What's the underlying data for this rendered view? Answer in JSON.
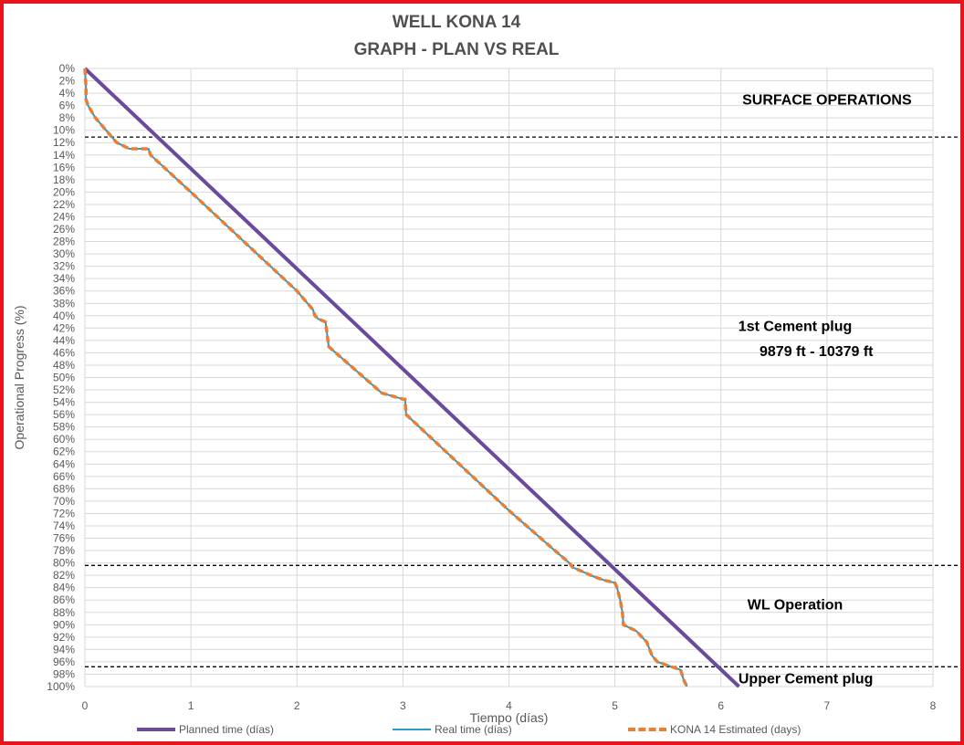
{
  "colors": {
    "frame": "#e8141b",
    "planned": "#6a4a9c",
    "real": "#2e9bc0",
    "estimated": "#ed7d31",
    "grid": "#d9d9d9",
    "hline": "#000000"
  },
  "chart_data": {
    "type": "line",
    "title": "WELL KONA 14",
    "subtitle": "GRAPH  - PLAN VS REAL",
    "xlabel": "Tiempo (días)",
    "ylabel": "Operational Progress (%)",
    "xlim": [
      0,
      8
    ],
    "ylim": [
      0,
      100
    ],
    "y_inverted": true,
    "grid": true,
    "legend_position": "bottom",
    "x_ticks": [
      "0",
      "1",
      "2",
      "3",
      "4",
      "5",
      "6",
      "7",
      "8"
    ],
    "y_ticks": [
      "0%",
      "2%",
      "4%",
      "6%",
      "8%",
      "10%",
      "12%",
      "14%",
      "16%",
      "18%",
      "20%",
      "22%",
      "24%",
      "26%",
      "28%",
      "30%",
      "32%",
      "34%",
      "36%",
      "38%",
      "40%",
      "42%",
      "44%",
      "46%",
      "48%",
      "50%",
      "52%",
      "54%",
      "56%",
      "58%",
      "60%",
      "62%",
      "64%",
      "66%",
      "68%",
      "70%",
      "72%",
      "74%",
      "76%",
      "78%",
      "80%",
      "82%",
      "84%",
      "86%",
      "88%",
      "90%",
      "92%",
      "94%",
      "96%",
      "98%",
      "100%"
    ],
    "series": [
      {
        "name": "Planned time (días)",
        "x": [
          0,
          6.17
        ],
        "y": [
          0,
          100
        ]
      },
      {
        "name": "Real time (días)",
        "x": [
          0,
          0.01,
          0.01,
          0.03,
          0.1,
          0.2,
          0.3,
          0.42,
          0.45,
          0.6,
          0.62,
          1.0,
          1.5,
          2.0,
          2.15,
          2.17,
          2.2,
          2.27,
          2.3,
          2.4,
          2.6,
          2.8,
          2.9,
          3.0,
          3.02,
          3.03,
          3.05,
          3.5,
          4.0,
          4.4,
          4.57,
          4.6,
          4.8,
          4.9,
          5.0,
          5.02,
          5.05,
          5.07,
          5.08,
          5.2,
          5.3,
          5.35,
          5.4,
          5.5,
          5.62,
          5.65,
          5.68
        ],
        "y": [
          0,
          3,
          5,
          6,
          8,
          10,
          12,
          13,
          13,
          13,
          14,
          20,
          28,
          36,
          39,
          40,
          40.5,
          41,
          45,
          46.5,
          49.5,
          52.5,
          53,
          53.5,
          53.5,
          56,
          56.3,
          63.5,
          71.5,
          77.5,
          80,
          80.7,
          82.2,
          82.8,
          83.2,
          84,
          86,
          88,
          90,
          91,
          92.8,
          95,
          96,
          96.6,
          97.3,
          99,
          100
        ]
      },
      {
        "name": "KONA 14 Estimated (days)",
        "x": [
          0,
          0.01,
          0.01,
          0.03,
          0.1,
          0.2,
          0.3,
          0.42,
          0.45,
          0.6,
          0.62,
          1.0,
          1.5,
          2.0,
          2.15,
          2.17,
          2.2,
          2.27,
          2.3,
          2.4,
          2.6,
          2.8,
          2.9,
          3.0,
          3.02,
          3.03,
          3.05,
          3.5,
          4.0,
          4.4,
          4.57,
          4.6,
          4.8,
          4.9,
          5.0,
          5.02,
          5.05,
          5.07,
          5.08,
          5.2,
          5.3,
          5.35,
          5.4,
          5.5,
          5.62,
          5.65,
          5.68
        ],
        "y": [
          0,
          3,
          5,
          6,
          8,
          10,
          12,
          13,
          13,
          13,
          14,
          20,
          28,
          36,
          39,
          40,
          40.5,
          41,
          45,
          46.5,
          49.5,
          52.5,
          53,
          53.5,
          53.5,
          56,
          56.3,
          63.5,
          71.5,
          77.5,
          80,
          80.7,
          82.2,
          82.8,
          83.2,
          84,
          86,
          88,
          90,
          91,
          92.8,
          95,
          96,
          96.6,
          97.3,
          99,
          100
        ]
      }
    ],
    "reference_lines_y": [
      11.1,
      80.4,
      96.8
    ],
    "annotations": [
      {
        "text": "SURFACE OPERATIONS",
        "x": 7.0,
        "y": 5.8
      },
      {
        "text": "1st Cement plug",
        "x": 6.7,
        "y": 42.5
      },
      {
        "text": "9879 ft - 10379 ft",
        "x": 6.9,
        "y": 46.5
      },
      {
        "text": "WL Operation",
        "x": 6.7,
        "y": 87.5
      },
      {
        "text": "Upper Cement plug",
        "x": 6.8,
        "y": 99.5
      }
    ]
  }
}
